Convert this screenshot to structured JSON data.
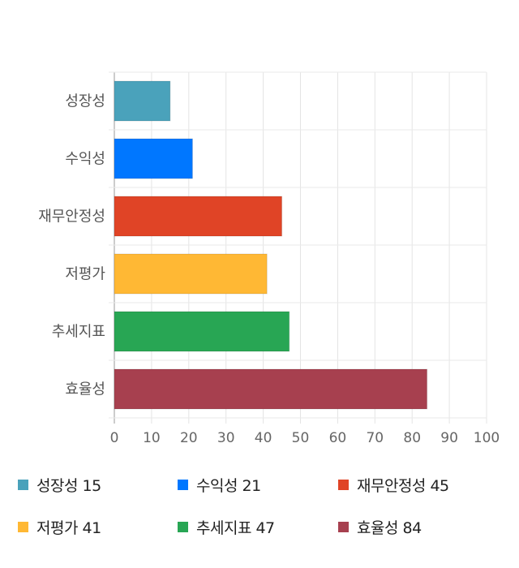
{
  "chart_data": {
    "type": "bar",
    "orientation": "horizontal",
    "categories": [
      "성장성",
      "수익성",
      "재무안정성",
      "저평가",
      "추세지표",
      "효율성"
    ],
    "values": [
      15,
      21,
      45,
      41,
      47,
      84
    ],
    "colors": [
      "#4aa2bb",
      "#0077ff",
      "#e04426",
      "#ffb834",
      "#28a654",
      "#a7404f"
    ],
    "xlim": [
      0,
      100
    ],
    "xticks": [
      "0",
      "10",
      "20",
      "30",
      "40",
      "50",
      "60",
      "70",
      "80",
      "90",
      "100"
    ],
    "grid": true,
    "legend_position": "bottom",
    "legend": [
      "성장성 15",
      "수익성 21",
      "재무안정성 45",
      "저평가 41",
      "추세지표 47",
      "효율성 84"
    ]
  }
}
